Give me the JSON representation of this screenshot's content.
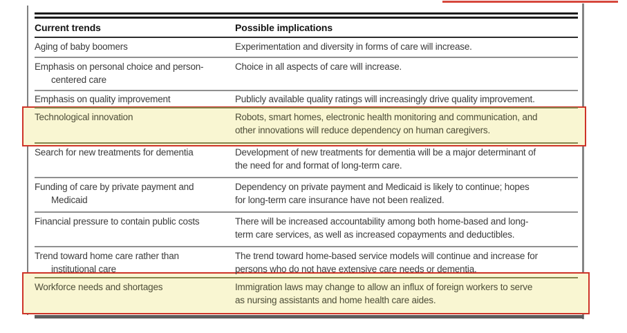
{
  "annotations": {
    "top_right_line_color": "#d6473c",
    "box_border_color": "#ce3428",
    "highlight_fill": "#f9f6d2"
  },
  "table": {
    "header": {
      "col1": "Current trends",
      "col2": "Possible implications"
    },
    "rows": [
      {
        "trend": "Aging of baby boomers",
        "implication": "Experimentation and diversity in forms of care will increase.",
        "highlighted": false
      },
      {
        "trend": "Emphasis on personal choice and person-\ncentered care",
        "implication": "Choice in all aspects of care will increase.",
        "highlighted": false
      },
      {
        "trend": "Emphasis on quality improvement",
        "implication": "Publicly available quality ratings will increasingly drive quality improvement.",
        "highlighted": false
      },
      {
        "trend": "Technological innovation",
        "implication": "Robots, smart homes, electronic health monitoring and communication, and\nother innovations will reduce dependency on human caregivers.",
        "highlighted": true
      },
      {
        "trend": "Search for new treatments for dementia",
        "implication": "Development of new treatments for dementia will be a major determinant of\nthe need for and format of long-term care.",
        "highlighted": false
      },
      {
        "trend": "Funding of care by private payment and\nMedicaid",
        "implication": "Dependency on private payment and Medicaid is likely to continue; hopes\nfor long-term care insurance have not been realized.",
        "highlighted": false
      },
      {
        "trend": "Financial pressure to contain public costs",
        "implication": "There will be increased accountability among both home-based and long-\nterm care services, as well as increased copayments and deductibles.",
        "highlighted": false
      },
      {
        "trend": "Trend toward home care rather than\ninstitutional care",
        "implication": "The trend toward home-based service models will continue and increase for\npersons who do not have extensive care needs or dementia.",
        "highlighted": false
      },
      {
        "trend": "Workforce needs and shortages",
        "implication": "Immigration laws may change to allow an influx of foreign workers to serve\nas nursing assistants and home health care aides.",
        "highlighted": true
      }
    ]
  }
}
